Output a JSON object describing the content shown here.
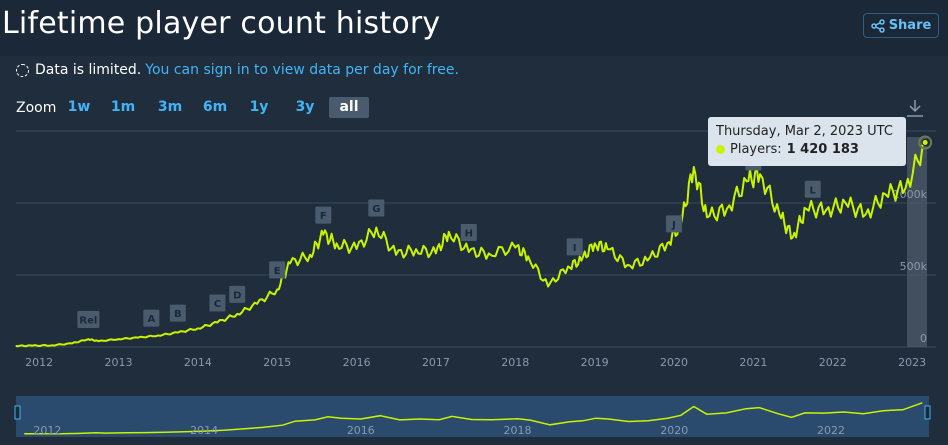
{
  "header": {
    "title": "Lifetime player count history",
    "share_label": "Share"
  },
  "notice": {
    "text": "Data is limited.",
    "link_text": "You can sign in to view data per day for free."
  },
  "zoom": {
    "label": "Zoom",
    "options": [
      "1w",
      "1m",
      "3m",
      "6m",
      "1y",
      "3y",
      "all"
    ],
    "selected": "all"
  },
  "tooltip": {
    "date": "Thursday, Mar 2, 2023 UTC",
    "series_label": "Players:",
    "value": "1 420 183"
  },
  "colors": {
    "line": "#c8f400",
    "background": "#1f2d3d",
    "grid": "#394a5c",
    "accent": "#42b4f5"
  },
  "chart_data": {
    "type": "line",
    "series": [
      {
        "values": [
          [
            "2011-09-15",
            8000
          ],
          [
            "2011-12-01",
            9000
          ],
          [
            "2012-03-01",
            12000
          ],
          [
            "2012-06-01",
            25000
          ],
          [
            "2012-08-15",
            55000
          ],
          [
            "2012-10-01",
            40000
          ],
          [
            "2013-01-01",
            55000
          ],
          [
            "2013-04-01",
            65000
          ],
          [
            "2013-07-01",
            80000
          ],
          [
            "2013-10-01",
            100000
          ],
          [
            "2014-01-01",
            130000
          ],
          [
            "2014-04-01",
            170000
          ],
          [
            "2014-07-01",
            230000
          ],
          [
            "2014-10-01",
            300000
          ],
          [
            "2015-01-01",
            400000
          ],
          [
            "2015-03-01",
            580000
          ],
          [
            "2015-06-01",
            640000
          ],
          [
            "2015-08-01",
            780000
          ],
          [
            "2015-10-01",
            720000
          ],
          [
            "2016-01-01",
            680000
          ],
          [
            "2016-04-01",
            830000
          ],
          [
            "2016-07-01",
            640000
          ],
          [
            "2016-10-01",
            680000
          ],
          [
            "2017-01-01",
            650000
          ],
          [
            "2017-03-01",
            800000
          ],
          [
            "2017-06-01",
            660000
          ],
          [
            "2017-09-01",
            650000
          ],
          [
            "2018-01-01",
            690000
          ],
          [
            "2018-03-01",
            630000
          ],
          [
            "2018-06-01",
            420000
          ],
          [
            "2018-09-01",
            560000
          ],
          [
            "2018-11-01",
            600000
          ],
          [
            "2019-01-01",
            720000
          ],
          [
            "2019-03-01",
            680000
          ],
          [
            "2019-06-01",
            570000
          ],
          [
            "2019-09-01",
            600000
          ],
          [
            "2019-12-01",
            720000
          ],
          [
            "2020-02-01",
            850000
          ],
          [
            "2020-04-01",
            1250000
          ],
          [
            "2020-06-01",
            900000
          ],
          [
            "2020-09-01",
            960000
          ],
          [
            "2020-12-01",
            1150000
          ],
          [
            "2021-02-01",
            1200000
          ],
          [
            "2021-05-01",
            920000
          ],
          [
            "2021-07-01",
            760000
          ],
          [
            "2021-09-01",
            960000
          ],
          [
            "2021-12-01",
            950000
          ],
          [
            "2022-03-01",
            1000000
          ],
          [
            "2022-06-01",
            920000
          ],
          [
            "2022-09-01",
            1060000
          ],
          [
            "2022-12-01",
            1100000
          ],
          [
            "2023-03-02",
            1420183
          ]
        ]
      }
    ],
    "ylim": [
      0,
      1500000
    ],
    "yticks": [
      {
        "value": 0,
        "label": "0"
      },
      {
        "value": 500000,
        "label": "500k"
      },
      {
        "value": 1000000,
        "label": "1000k"
      }
    ],
    "xticks": [
      "2012",
      "2013",
      "2014",
      "2015",
      "2016",
      "2017",
      "2018",
      "2019",
      "2020",
      "2021",
      "2022",
      "2023"
    ],
    "navigator_ticks": [
      "2012",
      "2014",
      "2016",
      "2018",
      "2020",
      "2022"
    ],
    "annotations": [
      {
        "label": "Rel",
        "date": "2012-08-15"
      },
      {
        "label": "A",
        "date": "2013-06-01"
      },
      {
        "label": "B",
        "date": "2013-10-01"
      },
      {
        "label": "C",
        "date": "2014-04-01"
      },
      {
        "label": "D",
        "date": "2014-07-01"
      },
      {
        "label": "E",
        "date": "2015-01-01"
      },
      {
        "label": "F",
        "date": "2015-08-01"
      },
      {
        "label": "G",
        "date": "2016-04-01"
      },
      {
        "label": "H",
        "date": "2017-06-01"
      },
      {
        "label": "I",
        "date": "2018-10-01"
      },
      {
        "label": "J",
        "date": "2020-01-01"
      },
      {
        "label": "K",
        "date": "2021-01-01"
      },
      {
        "label": "L",
        "date": "2021-10-01"
      }
    ],
    "grid": true,
    "legend": false
  }
}
